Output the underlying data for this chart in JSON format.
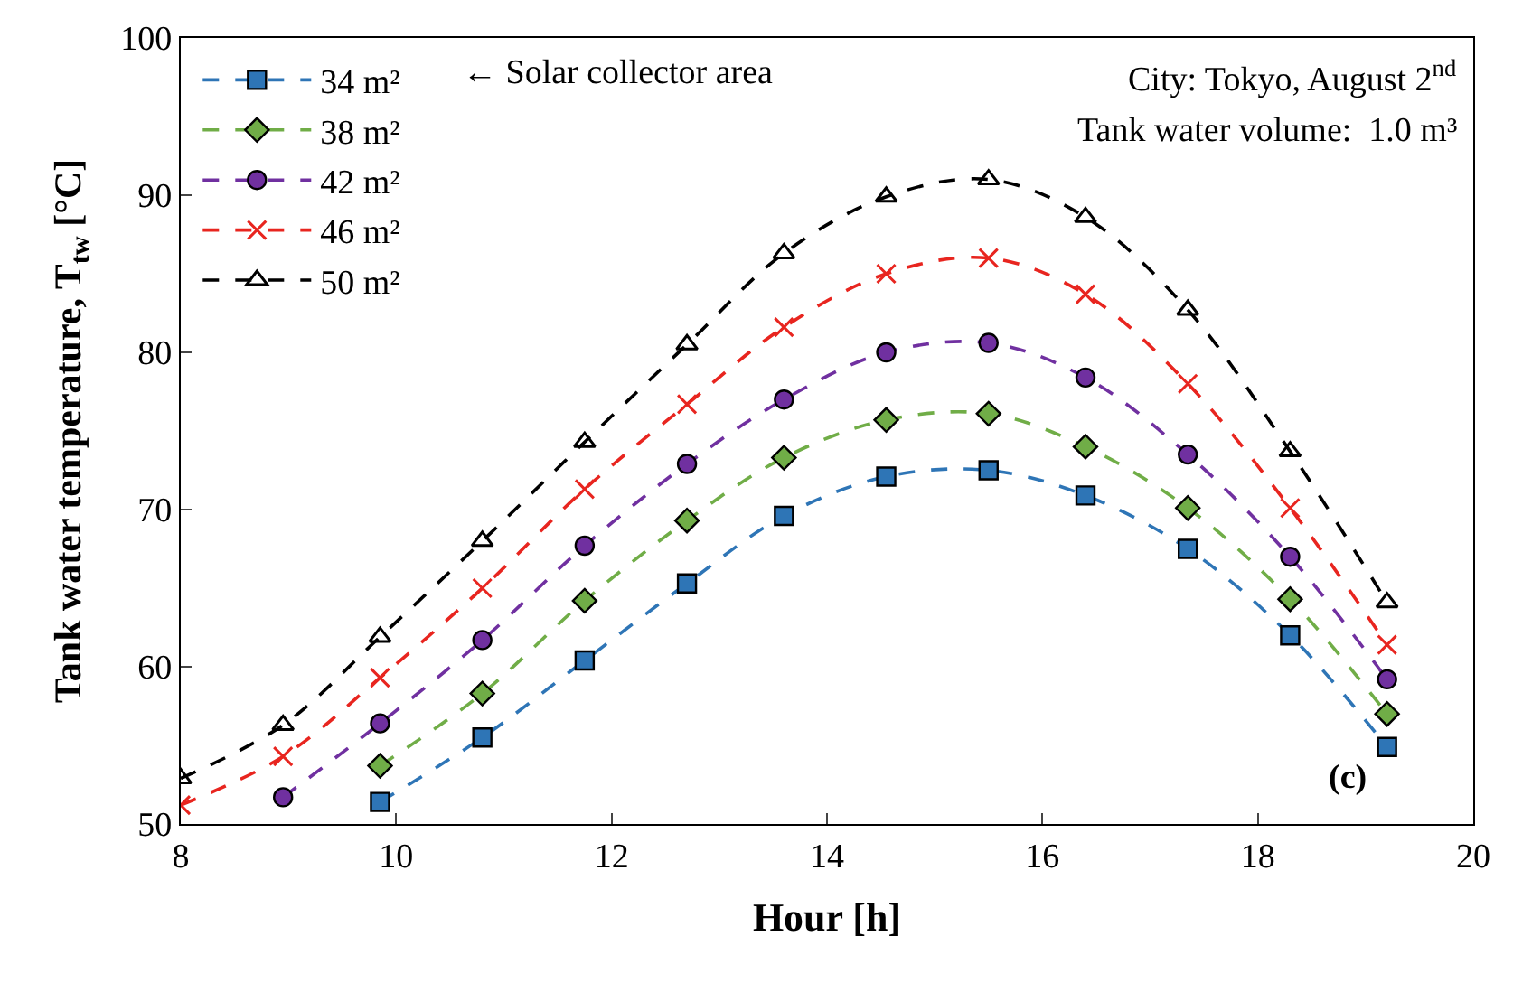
{
  "chart_data": {
    "type": "line",
    "xlabel": "Hour [h]",
    "ylabel": "Tank water temperature, T$_{tw}$ [°C]",
    "x": [
      8,
      8.95,
      9.85,
      10.8,
      11.75,
      12.7,
      13.6,
      14.55,
      15.5,
      16.4,
      17.35,
      18.3,
      19.2
    ],
    "xlim": [
      8,
      20
    ],
    "xticks": [
      8,
      10,
      12,
      14,
      16,
      18,
      20
    ],
    "ylim": [
      50,
      100
    ],
    "yticks": [
      50,
      60,
      70,
      80,
      90,
      100
    ],
    "legend": "top left",
    "line_style": "dashed",
    "series": [
      {
        "name": "34 m²",
        "color": "#2e75b6",
        "marker": "square",
        "values": [
          null,
          null,
          51.4,
          55.5,
          60.4,
          65.3,
          69.6,
          72.1,
          72.5,
          70.9,
          67.5,
          62.0,
          54.9
        ]
      },
      {
        "name": "38 m²",
        "color": "#70ad47",
        "marker": "diamond",
        "values": [
          null,
          null,
          53.7,
          58.3,
          64.2,
          69.3,
          73.3,
          75.7,
          76.1,
          74.0,
          70.1,
          64.3,
          57.0
        ]
      },
      {
        "name": "42 m²",
        "color": "#7030a0",
        "marker": "circle",
        "values": [
          null,
          51.7,
          56.4,
          61.7,
          67.7,
          72.9,
          77.0,
          80.0,
          80.6,
          78.4,
          73.5,
          67.0,
          59.2
        ]
      },
      {
        "name": "46 m²",
        "color": "#e8251f",
        "marker": "cross",
        "values": [
          51.2,
          54.3,
          59.3,
          65.0,
          71.3,
          76.7,
          81.6,
          85.0,
          86.0,
          83.7,
          78.0,
          70.1,
          61.4
        ]
      },
      {
        "name": "50 m²",
        "color": "#000000",
        "marker": "triangle",
        "values": [
          52.9,
          56.3,
          61.9,
          68.0,
          74.3,
          80.5,
          86.3,
          89.9,
          91.0,
          88.6,
          82.7,
          73.7,
          64.1
        ]
      }
    ],
    "annotations": [
      "← Solar collector area",
      "City: Tokyo, August 2$^{nd}$",
      "Tank water volume:  1.0 m³",
      "(c)"
    ]
  }
}
